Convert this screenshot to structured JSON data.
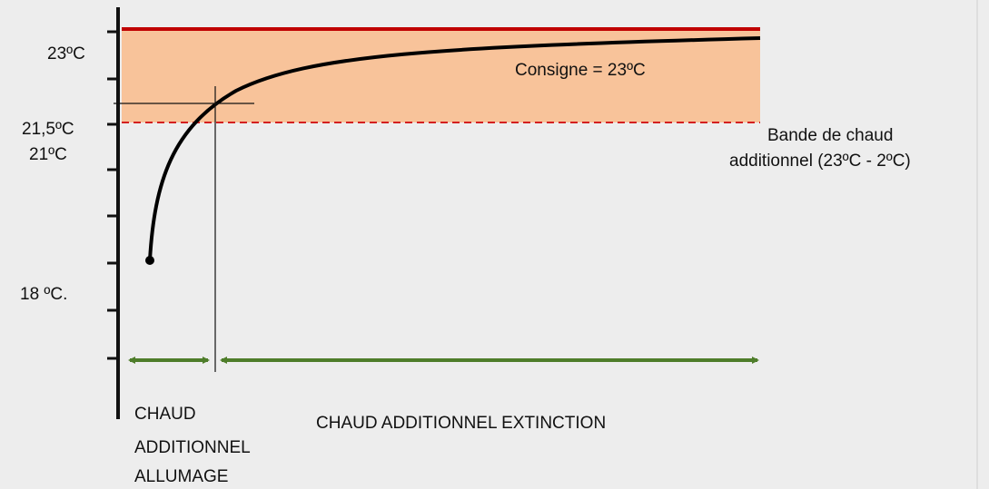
{
  "axis_labels": [
    "23ºC",
    "21,5ºC",
    "21ºC",
    "18 ºC."
  ],
  "setpoint_label": "Consigne = 23ºC",
  "band_label": [
    "Bande de chaud",
    "additionnel (23ºC - 2ºC)"
  ],
  "phases": [
    {
      "lines": [
        "CHAUD",
        "ADDITIONNEL",
        "ALLUMAGE"
      ]
    },
    {
      "lines": [
        "CHAUD ADDITIONNEL EXTINCTION"
      ]
    }
  ]
}
